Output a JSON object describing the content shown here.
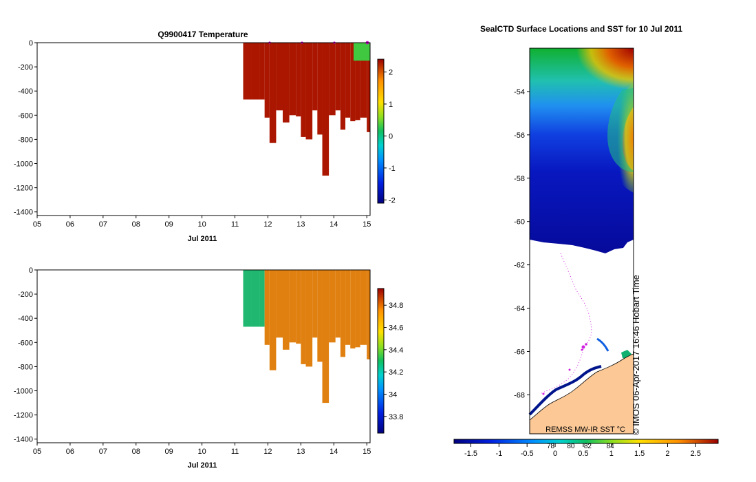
{
  "chart_data": [
    {
      "type": "heatmap",
      "title": "Q9900417  Temperature",
      "xlabel": "Jul 2011",
      "xticks": [
        "05",
        "06",
        "07",
        "08",
        "09",
        "10",
        "11",
        "12",
        "13",
        "14",
        "15"
      ],
      "xlim": [
        5,
        15.1
      ],
      "yticks": [
        "0",
        "-200",
        "-400",
        "-600",
        "-800",
        "-1000",
        "-1200",
        "-1400"
      ],
      "ylim": [
        -1430,
        0
      ],
      "colorbar": {
        "ticks": [
          "2",
          "1",
          "0",
          "-1",
          "-2"
        ],
        "range": [
          -2.1,
          2.4
        ]
      },
      "surface_markers_day": [
        12.0,
        13.0,
        14.0,
        15.0
      ],
      "profiles_start_day": [
        11.25,
        11.5,
        11.75,
        11.9,
        12.05,
        12.25,
        12.45,
        12.65,
        12.85,
        13.0,
        13.15,
        13.35,
        13.5,
        13.65,
        13.85,
        14.05,
        14.2,
        14.35,
        14.5,
        14.65,
        14.8,
        15.0
      ],
      "profiles_max_depth_m": [
        -470,
        -470,
        -470,
        -620,
        -830,
        -560,
        -660,
        -600,
        -610,
        -780,
        -800,
        -560,
        -760,
        -1100,
        -600,
        -560,
        -720,
        -620,
        -650,
        -640,
        -620,
        -740
      ]
    },
    {
      "type": "heatmap",
      "title": "",
      "xlabel": "Jul 2011",
      "xticks": [
        "05",
        "06",
        "07",
        "08",
        "09",
        "10",
        "11",
        "12",
        "13",
        "14",
        "15"
      ],
      "xlim": [
        5,
        15.1
      ],
      "yticks": [
        "0",
        "-200",
        "-400",
        "-600",
        "-800",
        "-1000",
        "-1200",
        "-1400"
      ],
      "ylim": [
        -1430,
        0
      ],
      "colorbar": {
        "ticks": [
          "34.8",
          "34.6",
          "34.4",
          "34.2",
          "34",
          "33.8"
        ],
        "range": [
          33.65,
          34.95
        ]
      },
      "profiles_start_day": [
        11.25,
        11.5,
        11.75,
        11.9,
        12.05,
        12.25,
        12.45,
        12.65,
        12.85,
        13.0,
        13.15,
        13.35,
        13.5,
        13.65,
        13.85,
        14.05,
        14.2,
        14.35,
        14.5,
        14.65,
        14.8,
        15.0
      ],
      "profiles_max_depth_m": [
        -470,
        -470,
        -470,
        -620,
        -830,
        -560,
        -660,
        -600,
        -610,
        -780,
        -800,
        -560,
        -760,
        -1100,
        -600,
        -560,
        -720,
        -620,
        -650,
        -640,
        -620,
        -740
      ]
    },
    {
      "type": "map",
      "title": "SealCTD Surface Locations and SST for 10 Jul 2011",
      "yticks": [
        "-54",
        "-56",
        "-58",
        "-60",
        "-62",
        "-64",
        "-66",
        "-68"
      ],
      "ylim": [
        -69.8,
        -52.0
      ],
      "colorbar": {
        "ticks": [
          "-1.5",
          "-1",
          "-0.5",
          "0",
          "0.5",
          "1",
          "1.5",
          "2",
          "2.5"
        ],
        "range": [
          -1.8,
          2.9
        ],
        "extra_ticks": [
          "78",
          "80",
          "82",
          "84"
        ],
        "label": "REMSS MW-IR SST °C"
      },
      "side_label": "© IMOS 06-Apr-2017 16:46 Hobart Time"
    }
  ]
}
